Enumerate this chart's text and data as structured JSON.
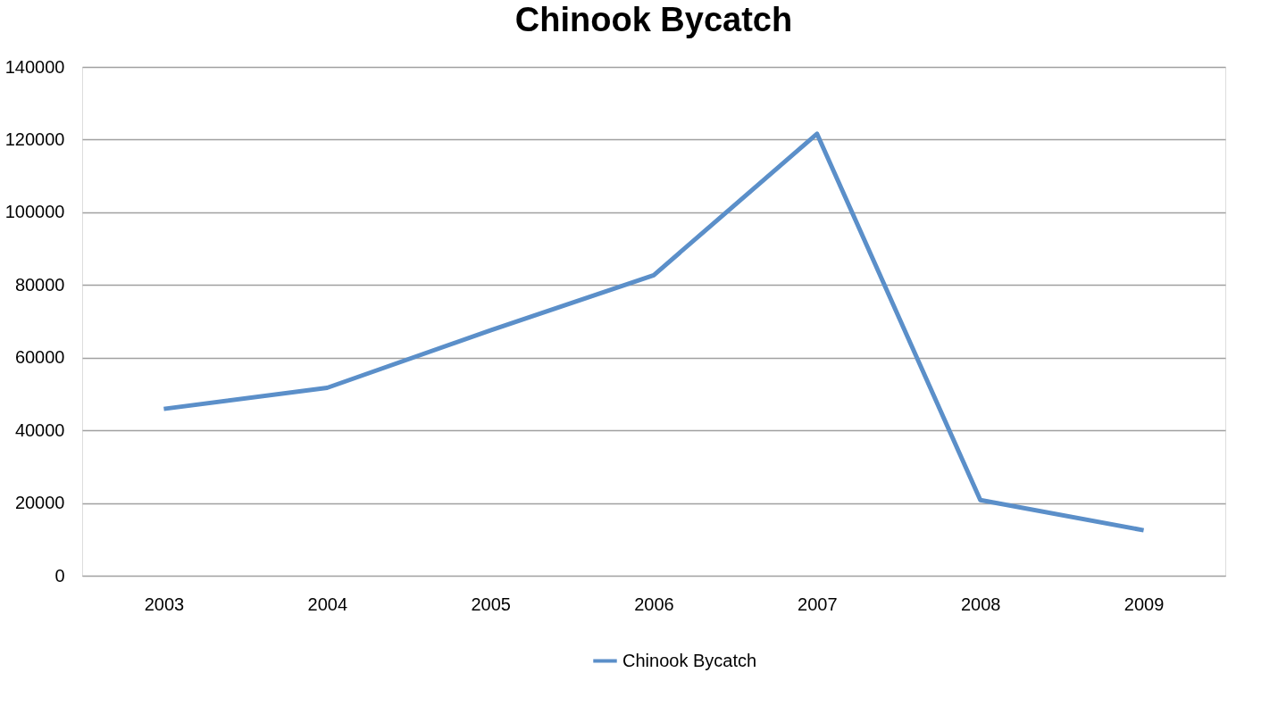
{
  "chart_data": {
    "type": "line",
    "title": "Chinook Bycatch",
    "categories": [
      "2003",
      "2004",
      "2005",
      "2006",
      "2007",
      "2008",
      "2009"
    ],
    "series": [
      {
        "name": "Chinook Bycatch",
        "color": "#5b8fc9",
        "values": [
          45900,
          51700,
          67500,
          82700,
          121600,
          20800,
          12500
        ]
      }
    ],
    "ylim": [
      0,
      140000
    ],
    "yticks": [
      0,
      20000,
      40000,
      60000,
      80000,
      100000,
      120000,
      140000
    ],
    "grid": "y",
    "legend": "bottom",
    "marker": "none",
    "line_style": "solid"
  }
}
